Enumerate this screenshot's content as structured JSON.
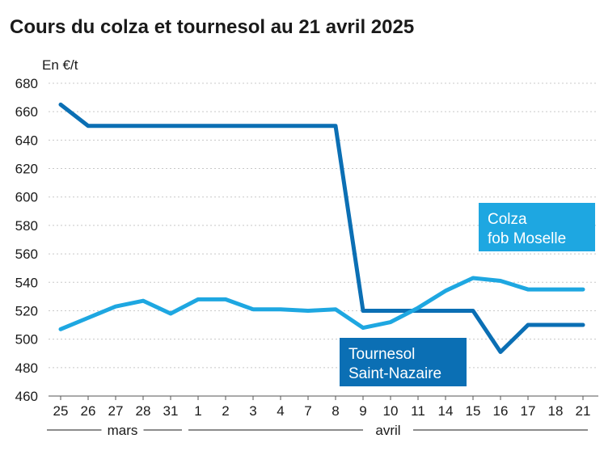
{
  "chart_data": {
    "type": "line",
    "title": "Cours du colza et tournesol au 21 avril 2025",
    "ylabel": "En €/t",
    "xlabel": "",
    "ylim": [
      460,
      680
    ],
    "yticks": [
      460,
      480,
      500,
      520,
      540,
      560,
      580,
      600,
      620,
      640,
      660,
      680
    ],
    "grid": true,
    "categories": [
      "25",
      "26",
      "27",
      "28",
      "31",
      "1",
      "2",
      "3",
      "4",
      "7",
      "8",
      "9",
      "10",
      "11",
      "14",
      "15",
      "16",
      "17",
      "18",
      "21"
    ],
    "months": [
      {
        "label": "mars",
        "from": 0,
        "to": 4
      },
      {
        "label": "avril",
        "from": 5,
        "to": 19
      }
    ],
    "series": [
      {
        "name_lines": [
          "Tournesol",
          "Saint-Nazaire"
        ],
        "color": "#0b6fb4",
        "values": [
          665,
          650,
          650,
          650,
          650,
          650,
          650,
          650,
          650,
          650,
          650,
          520,
          520,
          520,
          520,
          520,
          491,
          510,
          510,
          510
        ]
      },
      {
        "name_lines": [
          "Colza",
          "fob Moselle"
        ],
        "color": "#1ea7e1",
        "values": [
          507,
          515,
          523,
          527,
          518,
          528,
          528,
          521,
          521,
          520,
          521,
          508,
          512,
          522,
          534,
          543,
          541,
          535,
          535,
          535
        ]
      }
    ]
  }
}
